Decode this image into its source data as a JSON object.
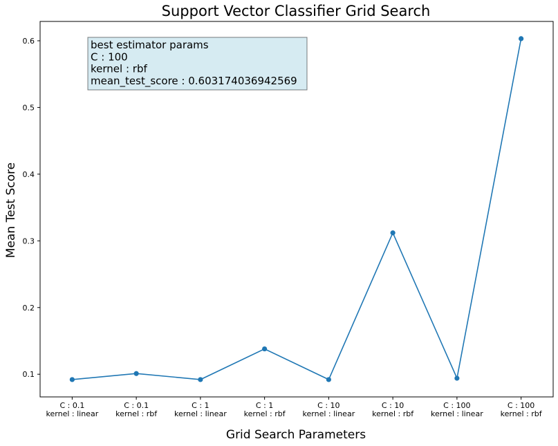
{
  "chart_data": {
    "type": "line",
    "title": "Support Vector Classifier Grid Search",
    "xlabel": "Grid Search Parameters",
    "ylabel": "Mean Test Score",
    "categories": [
      [
        "C : 0.1",
        "kernel : linear"
      ],
      [
        "C : 0.1",
        "kernel : rbf"
      ],
      [
        "C : 1",
        "kernel : linear"
      ],
      [
        "C : 1",
        "kernel : rbf"
      ],
      [
        "C : 10",
        "kernel : linear"
      ],
      [
        "C : 10",
        "kernel : rbf"
      ],
      [
        "C : 100",
        "kernel : linear"
      ],
      [
        "C : 100",
        "kernel : rbf"
      ]
    ],
    "values": [
      0.092,
      0.101,
      0.092,
      0.138,
      0.092,
      0.312,
      0.094,
      0.603174036942569
    ],
    "ylim": [
      0.066,
      0.629
    ],
    "yticks": [
      0.1,
      0.2,
      0.3,
      0.4,
      0.5,
      0.6
    ],
    "ytick_labels": [
      "0.1",
      "0.2",
      "0.3",
      "0.4",
      "0.5",
      "0.6"
    ],
    "grid": false,
    "line_color": "#1f77b4",
    "annotation": {
      "lines": [
        "best estimator params",
        "C : 100",
        "kernel : rbf",
        "mean_test_score : 0.603174036942569"
      ],
      "box_fill": "#add8e6",
      "box_edge": "#000000"
    }
  }
}
